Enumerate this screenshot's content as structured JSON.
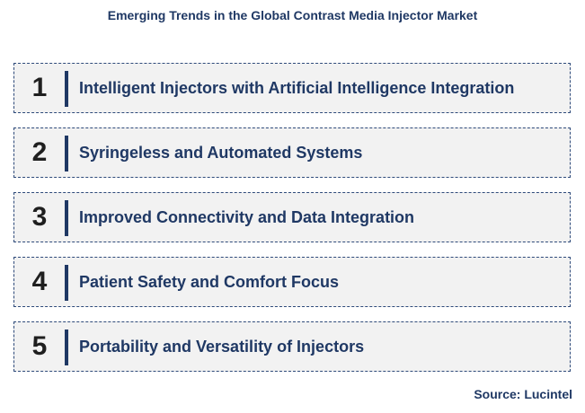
{
  "title": "Emerging Trends in the Global Contrast Media Injector Market",
  "trends": [
    {
      "number": "1",
      "label": "Intelligent Injectors with Artificial Intelligence Integration"
    },
    {
      "number": "2",
      "label": "Syringeless and Automated Systems"
    },
    {
      "number": "3",
      "label": "Improved Connectivity and Data Integration"
    },
    {
      "number": "4",
      "label": "Patient Safety and Comfort Focus"
    },
    {
      "number": "5",
      "label": "Portability and Versatility of Injectors"
    }
  ],
  "source": "Source: Lucintel",
  "colors": {
    "accent": "#1f3864",
    "box_fill": "#f2f2f2",
    "number": "#1f1f1f"
  }
}
